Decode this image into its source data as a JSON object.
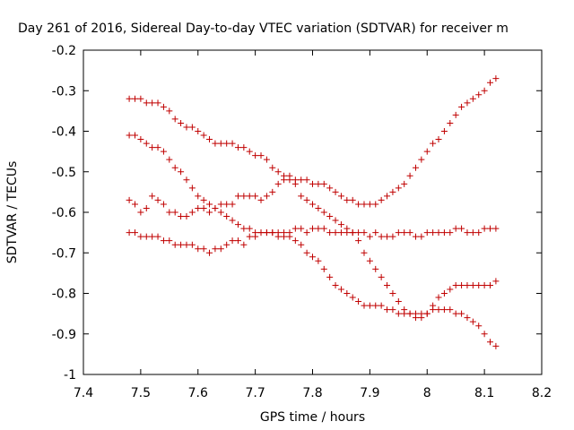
{
  "chart_data": {
    "type": "scatter",
    "title": "Day 261 of 2016, Sidereal Day-to-day VTEC variation (SDTVAR) for receiver m",
    "xlabel": "GPS time / hours",
    "ylabel": "SDTVAR / TECUs",
    "xlim": [
      7.4,
      8.2
    ],
    "ylim": [
      -1.0,
      -0.2
    ],
    "xticks": [
      "7.4",
      "7.5",
      "7.6",
      "7.7",
      "7.8",
      "7.9",
      "8",
      "8.1",
      "8.2"
    ],
    "yticks": [
      "-1",
      "-0.9",
      "-0.8",
      "-0.7",
      "-0.6",
      "-0.5",
      "-0.4",
      "-0.3",
      "-0.2"
    ],
    "grid": false,
    "marker": "+",
    "color": "#c00000",
    "series": [
      {
        "x": [
          7.48,
          7.49,
          7.5,
          7.51,
          7.52,
          7.53,
          7.54,
          7.55,
          7.56,
          7.57,
          7.58,
          7.59,
          7.6,
          7.61,
          7.62,
          7.63,
          7.64,
          7.65,
          7.66,
          7.67,
          7.68,
          7.69,
          7.7,
          7.71,
          7.72,
          7.73,
          7.74,
          7.75,
          7.76,
          7.77,
          7.78,
          7.79,
          7.8,
          7.81,
          7.82,
          7.83,
          7.84,
          7.85,
          7.86,
          7.87,
          7.88,
          7.89,
          7.9,
          7.91,
          7.92,
          7.93,
          7.94,
          7.95,
          7.96,
          7.97,
          7.98,
          7.99,
          8.0,
          8.01,
          8.02,
          8.03,
          8.04,
          8.05,
          8.06,
          8.07,
          8.08,
          8.09,
          8.1,
          8.11,
          8.12
        ],
        "y": [
          -0.32,
          -0.32,
          -0.32,
          -0.33,
          -0.33,
          -0.33,
          -0.34,
          -0.35,
          -0.37,
          -0.38,
          -0.39,
          -0.39,
          -0.4,
          -0.41,
          -0.42,
          -0.43,
          -0.43,
          -0.43,
          -0.43,
          -0.44,
          -0.44,
          -0.45,
          -0.46,
          -0.46,
          -0.47,
          -0.49,
          -0.5,
          -0.51,
          -0.52,
          -0.52,
          -0.52,
          -0.52,
          -0.53,
          -0.53,
          -0.53,
          -0.54,
          -0.55,
          -0.56,
          -0.57,
          -0.57,
          -0.58,
          -0.58,
          -0.58,
          -0.58,
          -0.57,
          -0.56,
          -0.55,
          -0.54,
          -0.53,
          -0.51,
          -0.49,
          -0.47,
          -0.45,
          -0.43,
          -0.42,
          -0.4,
          -0.38,
          -0.36,
          -0.34,
          -0.33,
          -0.32,
          -0.31,
          -0.3,
          -0.28,
          -0.27
        ]
      },
      {
        "x": [
          7.48,
          7.49,
          7.5,
          7.51,
          7.52,
          7.53,
          7.54,
          7.55,
          7.56,
          7.57,
          7.58,
          7.59,
          7.6,
          7.61,
          7.62,
          7.63,
          7.64,
          7.65,
          7.66,
          7.67,
          7.68,
          7.69,
          7.7,
          7.71,
          7.72,
          7.73,
          7.74,
          7.75,
          7.76,
          7.77,
          7.78,
          7.79,
          7.8,
          7.81,
          7.82,
          7.83,
          7.84,
          7.85,
          7.86,
          7.87,
          7.88,
          7.89,
          7.9,
          7.91,
          7.92,
          7.93,
          7.94,
          7.95,
          7.96,
          7.97,
          7.98,
          7.99,
          8.0,
          8.01,
          8.02,
          8.03,
          8.04,
          8.05,
          8.06,
          8.07,
          8.08,
          8.09,
          8.1,
          8.11,
          8.12
        ],
        "y": [
          -0.41,
          -0.41,
          -0.42,
          -0.43,
          -0.44,
          -0.44,
          -0.45,
          -0.47,
          -0.49,
          -0.5,
          -0.52,
          -0.54,
          -0.56,
          -0.57,
          -0.58,
          -0.59,
          -0.6,
          -0.61,
          -0.62,
          -0.63,
          -0.64,
          -0.64,
          -0.65,
          -0.65,
          -0.65,
          -0.65,
          -0.66,
          -0.66,
          -0.66,
          -0.67,
          -0.68,
          -0.7,
          -0.71,
          -0.72,
          -0.74,
          -0.76,
          -0.78,
          -0.79,
          -0.8,
          -0.81,
          -0.82,
          -0.83,
          -0.83,
          -0.83,
          -0.83,
          -0.84,
          -0.84,
          -0.85,
          -0.85,
          -0.85,
          -0.85,
          -0.85,
          -0.85,
          -0.84,
          -0.84,
          -0.84,
          -0.84,
          -0.85,
          -0.85,
          -0.86,
          -0.87,
          -0.88,
          -0.9,
          -0.92,
          -0.93
        ]
      },
      {
        "x": [
          7.48,
          7.49,
          7.5,
          7.51,
          7.52,
          7.53,
          7.54,
          7.55,
          7.56,
          7.57,
          7.58,
          7.59,
          7.6,
          7.61,
          7.62,
          7.63,
          7.64,
          7.65,
          7.66,
          7.67,
          7.68,
          7.69,
          7.7,
          7.71,
          7.72,
          7.73,
          7.74,
          7.75,
          7.76,
          7.77,
          7.78,
          7.79,
          7.8,
          7.81,
          7.82,
          7.83,
          7.84,
          7.85,
          7.86,
          7.87,
          7.88,
          7.89,
          7.9,
          7.91,
          7.92,
          7.93,
          7.94,
          7.95,
          7.96,
          7.97,
          7.98,
          7.99,
          8.0,
          8.01,
          8.02,
          8.03,
          8.04,
          8.05,
          8.06,
          8.07,
          8.08,
          8.09,
          8.1,
          8.11,
          8.12
        ],
        "y": [
          -0.57,
          -0.58,
          -0.6,
          -0.59,
          -0.56,
          -0.57,
          -0.58,
          -0.6,
          -0.6,
          -0.61,
          -0.61,
          -0.6,
          -0.59,
          -0.59,
          -0.6,
          -0.59,
          -0.58,
          -0.58,
          -0.58,
          -0.56,
          -0.56,
          -0.56,
          -0.56,
          -0.57,
          -0.56,
          -0.55,
          -0.53,
          -0.52,
          -0.51,
          -0.53,
          -0.56,
          -0.57,
          -0.58,
          -0.59,
          -0.6,
          -0.61,
          -0.62,
          -0.63,
          -0.64,
          -0.65,
          -0.67,
          -0.7,
          -0.72,
          -0.74,
          -0.76,
          -0.78,
          -0.8,
          -0.82,
          -0.84,
          -0.85,
          -0.86,
          -0.86,
          -0.85,
          -0.83,
          -0.81,
          -0.8,
          -0.79,
          -0.78,
          -0.78,
          -0.78,
          -0.78,
          -0.78,
          -0.78,
          -0.78,
          -0.77
        ]
      },
      {
        "x": [
          7.48,
          7.49,
          7.5,
          7.51,
          7.52,
          7.53,
          7.54,
          7.55,
          7.56,
          7.57,
          7.58,
          7.59,
          7.6,
          7.61,
          7.62,
          7.63,
          7.64,
          7.65,
          7.66,
          7.67,
          7.68,
          7.69,
          7.7,
          7.71,
          7.72,
          7.73,
          7.74,
          7.75,
          7.76,
          7.77,
          7.78,
          7.79,
          7.8,
          7.81,
          7.82,
          7.83,
          7.84,
          7.85,
          7.86,
          7.87,
          7.88,
          7.89,
          7.9,
          7.91,
          7.92,
          7.93,
          7.94,
          7.95,
          7.96,
          7.97,
          7.98,
          7.99,
          8.0,
          8.01,
          8.02,
          8.03,
          8.04,
          8.05,
          8.06,
          8.07,
          8.08,
          8.09,
          8.1,
          8.11,
          8.12
        ],
        "y": [
          -0.65,
          -0.65,
          -0.66,
          -0.66,
          -0.66,
          -0.66,
          -0.67,
          -0.67,
          -0.68,
          -0.68,
          -0.68,
          -0.68,
          -0.69,
          -0.69,
          -0.7,
          -0.69,
          -0.69,
          -0.68,
          -0.67,
          -0.67,
          -0.68,
          -0.66,
          -0.66,
          -0.65,
          -0.65,
          -0.65,
          -0.65,
          -0.65,
          -0.65,
          -0.64,
          -0.64,
          -0.65,
          -0.64,
          -0.64,
          -0.64,
          -0.65,
          -0.65,
          -0.65,
          -0.65,
          -0.65,
          -0.65,
          -0.65,
          -0.66,
          -0.65,
          -0.66,
          -0.66,
          -0.66,
          -0.65,
          -0.65,
          -0.65,
          -0.66,
          -0.66,
          -0.65,
          -0.65,
          -0.65,
          -0.65,
          -0.65,
          -0.64,
          -0.64,
          -0.65,
          -0.65,
          -0.65,
          -0.64,
          -0.64,
          -0.64
        ]
      }
    ]
  }
}
